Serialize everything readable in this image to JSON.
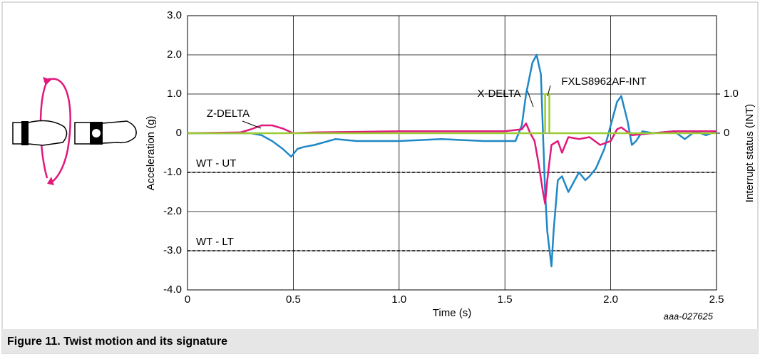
{
  "chart_data": {
    "type": "line",
    "caption": "Figure 11.  Twist motion and its signature",
    "code": "aaa-027625",
    "xlabel": "Time (s)",
    "ylabel": "Acceleration (g)",
    "y2label": "Interrupt status (INT)",
    "xlim": [
      0,
      2.5
    ],
    "xticks": [
      0,
      0.5,
      {
        "value": 1,
        "label": "1.0"
      },
      1.5,
      {
        "value": 2,
        "label": "2.0"
      },
      2.5
    ],
    "ylim": [
      -4,
      3
    ],
    "yticks": [
      {
        "value": -4,
        "label": "-4.0"
      },
      {
        "value": -3,
        "label": "-3.0"
      },
      {
        "value": -2,
        "label": "-2.0"
      },
      {
        "value": -1,
        "label": "-1.0"
      },
      0,
      {
        "value": 1,
        "label": "1.0"
      },
      {
        "value": 2,
        "label": "2.0"
      },
      {
        "value": 3,
        "label": "3.0"
      }
    ],
    "y2lim": [
      -4,
      3
    ],
    "y2ticks": [
      0,
      {
        "value": 1,
        "label": "1.0"
      }
    ],
    "grid": true,
    "reference_lines": [
      {
        "label": "WT - UT",
        "value": -1
      },
      {
        "label": "WT - LT",
        "value": -3
      }
    ],
    "series": [
      {
        "name": "X-DELTA",
        "color": "#1f87c6",
        "x": [
          0,
          0.3,
          0.35,
          0.4,
          0.45,
          0.49,
          0.52,
          0.55,
          0.6,
          0.7,
          0.8,
          0.9,
          1.0,
          1.2,
          1.4,
          1.5,
          1.55,
          1.58,
          1.6,
          1.63,
          1.65,
          1.67,
          1.68,
          1.69,
          1.7,
          1.72,
          1.73,
          1.75,
          1.77,
          1.8,
          1.82,
          1.85,
          1.88,
          1.9,
          1.93,
          1.97,
          2.0,
          2.03,
          2.05,
          2.08,
          2.1,
          2.12,
          2.15,
          2.2,
          2.3,
          2.35,
          2.4,
          2.45,
          2.5
        ],
        "values": [
          0,
          0,
          -0.05,
          -0.2,
          -0.4,
          -0.6,
          -0.4,
          -0.35,
          -0.3,
          -0.15,
          -0.2,
          -0.2,
          -0.2,
          -0.15,
          -0.2,
          -0.2,
          -0.2,
          0.2,
          1.0,
          1.8,
          2.0,
          1.5,
          0,
          -1.5,
          -2.5,
          -3.4,
          -2.5,
          -1.2,
          -1.1,
          -1.5,
          -1.3,
          -1.0,
          -1.2,
          -1.1,
          -0.9,
          -0.4,
          0.2,
          0.8,
          0.95,
          0.3,
          -0.3,
          -0.2,
          0.05,
          0,
          0.05,
          -0.15,
          0.05,
          -0.05,
          0.05
        ]
      },
      {
        "name": "Z-DELTA",
        "color": "#e0197d",
        "x": [
          0,
          0.25,
          0.3,
          0.35,
          0.4,
          0.45,
          0.5,
          0.6,
          1.0,
          1.4,
          1.5,
          1.58,
          1.6,
          1.62,
          1.64,
          1.66,
          1.68,
          1.69,
          1.7,
          1.72,
          1.75,
          1.77,
          1.8,
          1.85,
          1.9,
          1.95,
          2.0,
          2.03,
          2.05,
          2.1,
          2.2,
          2.3,
          2.5
        ],
        "values": [
          0,
          0.02,
          0.1,
          0.2,
          0.2,
          0.12,
          0,
          0.02,
          0.05,
          0.05,
          0.05,
          0.1,
          0.25,
          0,
          -0.2,
          -0.8,
          -1.5,
          -1.8,
          -1.2,
          -0.3,
          -0.2,
          -0.5,
          -0.1,
          -0.15,
          -0.1,
          -0.3,
          -0.2,
          0.1,
          0.15,
          -0.05,
          0,
          0.05,
          0.05
        ]
      },
      {
        "name": "FXLS8962AF-INT",
        "color": "#9acd32",
        "axis": "y2",
        "x": [
          0,
          1.69,
          1.69,
          1.71,
          1.71,
          2.5
        ],
        "values": [
          0,
          0,
          1,
          1,
          0,
          0
        ]
      }
    ]
  }
}
